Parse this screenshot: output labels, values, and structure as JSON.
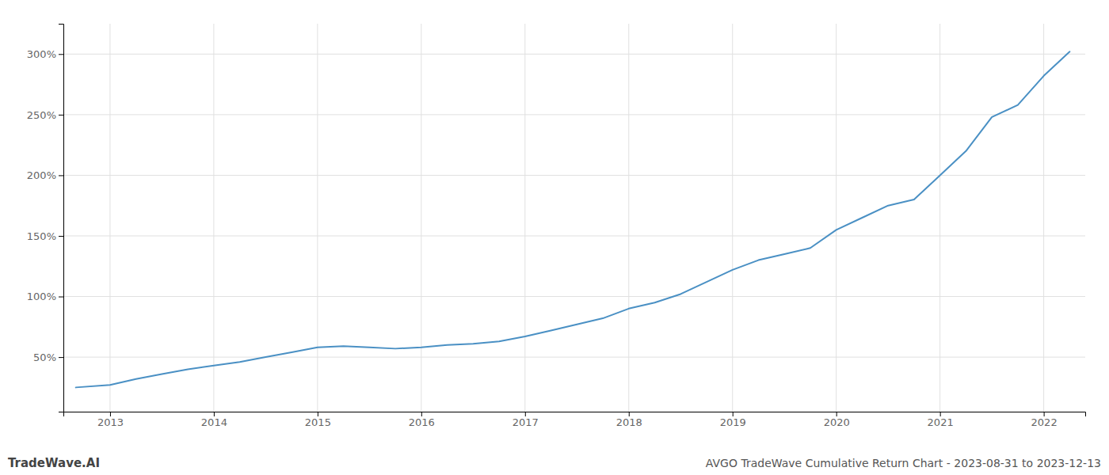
{
  "chart_data": {
    "type": "line",
    "title": "AVGO TradeWave Cumulative Return Chart - 2023-08-31 to 2023-12-13",
    "annotations": [
      "TradeWave.AI"
    ],
    "color": "#4a90c4",
    "x": [
      2012.67,
      2013.0,
      2013.25,
      2013.5,
      2013.75,
      2014.0,
      2014.25,
      2014.5,
      2014.75,
      2015.0,
      2015.25,
      2015.5,
      2015.75,
      2016.0,
      2016.25,
      2016.5,
      2016.75,
      2017.0,
      2017.25,
      2017.5,
      2017.75,
      2018.0,
      2018.25,
      2018.5,
      2018.75,
      2019.0,
      2019.25,
      2019.5,
      2019.75,
      2020.0,
      2020.25,
      2020.5,
      2020.75,
      2021.0,
      2021.25,
      2021.5,
      2021.75,
      2022.0,
      2022.25
    ],
    "values": [
      25,
      27,
      32,
      36,
      40,
      43,
      46,
      50,
      54,
      58,
      59,
      58,
      57,
      58,
      60,
      61,
      63,
      67,
      72,
      77,
      82,
      90,
      95,
      102,
      112,
      122,
      130,
      135,
      140,
      155,
      165,
      175,
      180,
      200,
      220,
      248,
      258,
      282,
      302
    ],
    "xlim": [
      2012.55,
      2022.4
    ],
    "xticks": [
      2013,
      2014,
      2015,
      2016,
      2017,
      2018,
      2019,
      2020,
      2021,
      2022
    ],
    "ylim": [
      5,
      325
    ],
    "yticks": [
      {
        "value": 50,
        "label": "50%"
      },
      {
        "value": 100,
        "label": "100%"
      },
      {
        "value": 150,
        "label": "150%"
      },
      {
        "value": 200,
        "label": "200%"
      },
      {
        "value": 250,
        "label": "250%"
      },
      {
        "value": 300,
        "label": "300%"
      }
    ],
    "grid": true
  }
}
